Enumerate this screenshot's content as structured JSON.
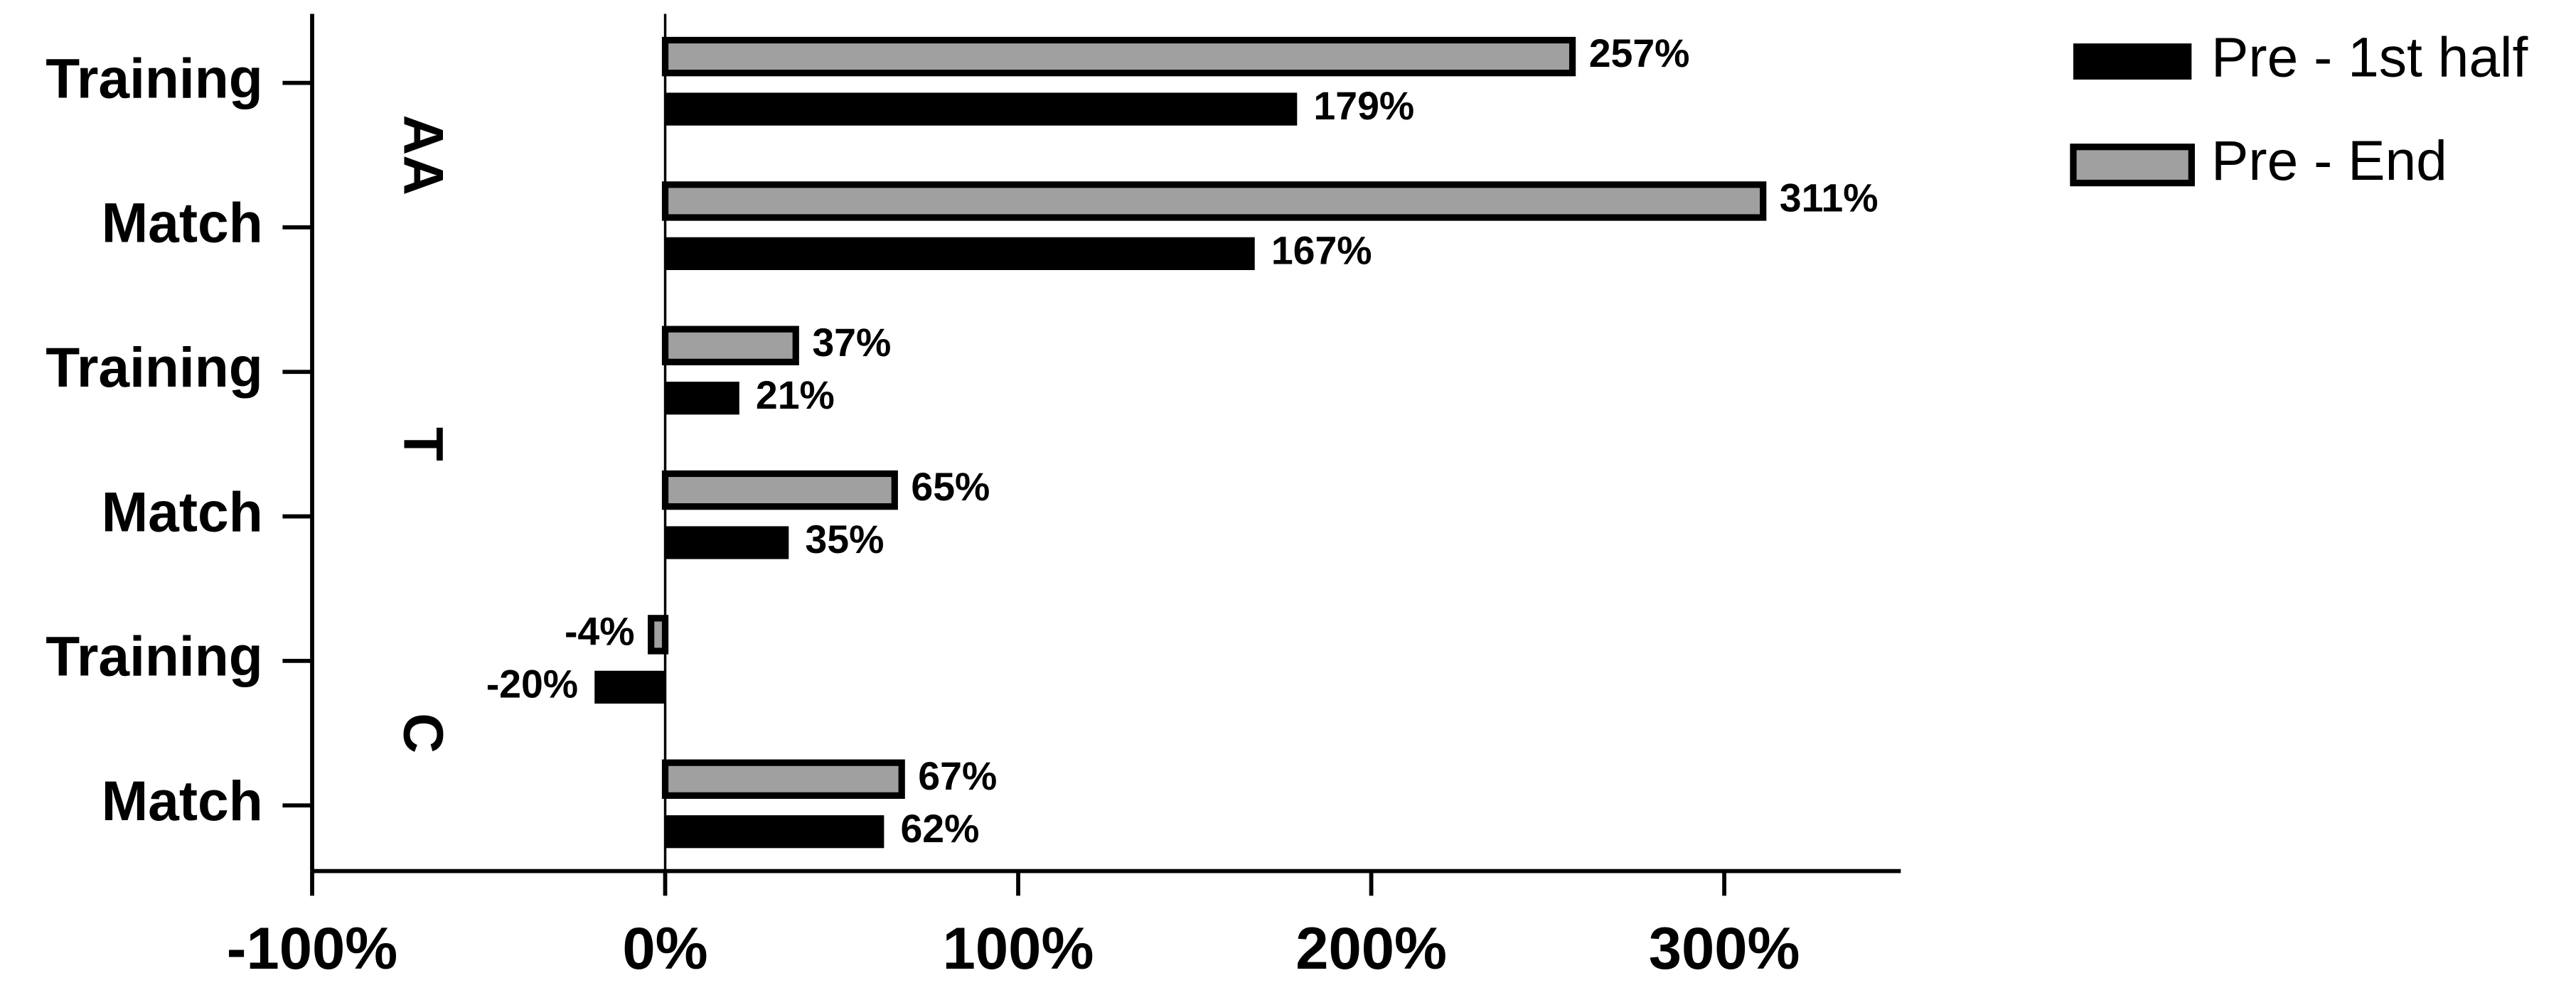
{
  "chart_data": {
    "type": "barh",
    "categories": [
      "Training",
      "Match",
      "Training",
      "Match",
      "Training",
      "Match"
    ],
    "group_labels": [
      "AA",
      "T",
      "C"
    ],
    "series": [
      {
        "name": "Pre - 1st half",
        "color": "#000000",
        "values": [
          179,
          167,
          21,
          35,
          -20,
          62
        ],
        "value_labels": [
          "179%",
          "167%",
          "21%",
          "35%",
          "-20%",
          "62%"
        ]
      },
      {
        "name": "Pre - End",
        "color": "#a0a0a0",
        "values": [
          257,
          311,
          37,
          65,
          -4,
          67
        ],
        "value_labels": [
          "257%",
          "311%",
          "37%",
          "65%",
          "-4%",
          "67%"
        ]
      }
    ],
    "xlim": [
      -100,
      350
    ],
    "xticks": [
      {
        "value": -100,
        "label": "-100%"
      },
      {
        "value": 0,
        "label": "0%"
      },
      {
        "value": 100,
        "label": "100%"
      },
      {
        "value": 200,
        "label": "200%"
      },
      {
        "value": 300,
        "label": "300%"
      }
    ],
    "legend": "top-right"
  }
}
